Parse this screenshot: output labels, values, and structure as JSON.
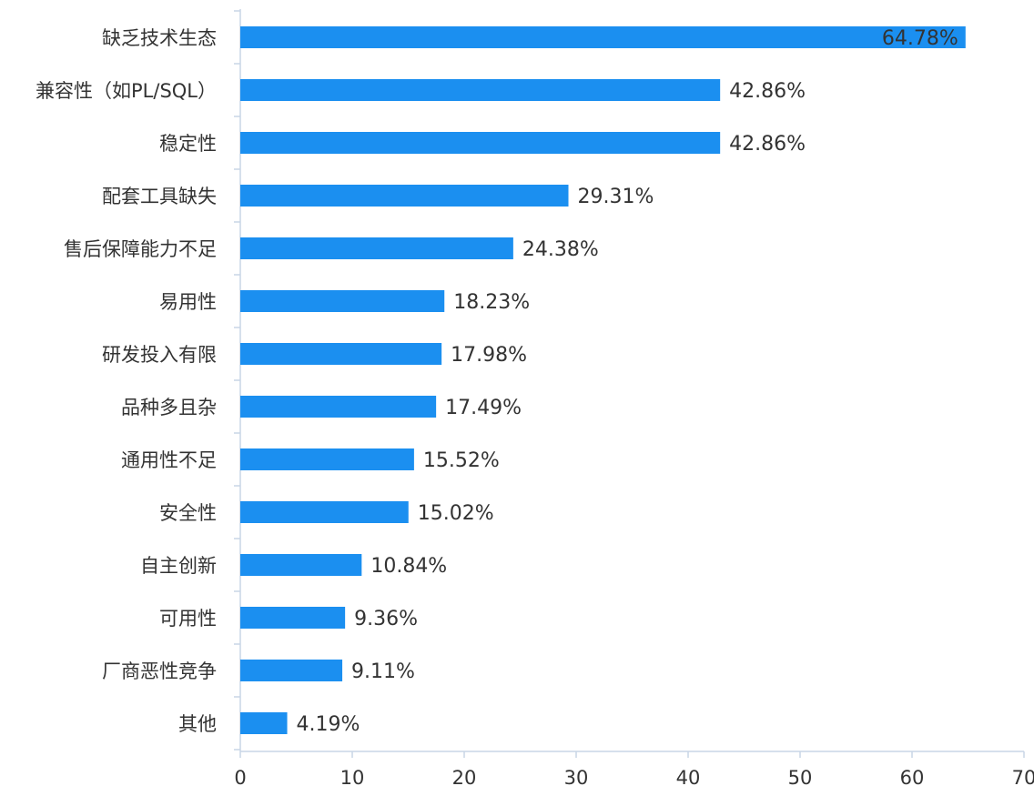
{
  "chart_data": {
    "type": "bar",
    "orientation": "horizontal",
    "categories": [
      "缺乏技术生态",
      "兼容性（如PL/SQL）",
      "稳定性",
      "配套工具缺失",
      "售后保障能力不足",
      "易用性",
      "研发投入有限",
      "品种多且杂",
      "通用性不足",
      "安全性",
      "自主创新",
      "可用性",
      "厂商恶性竞争",
      "其他"
    ],
    "values": [
      64.78,
      42.86,
      42.86,
      29.31,
      24.38,
      18.23,
      17.98,
      17.49,
      15.52,
      15.02,
      10.84,
      9.36,
      9.11,
      4.19
    ],
    "value_labels": [
      "64.78%",
      "42.86%",
      "42.86%",
      "29.31%",
      "24.38%",
      "18.23%",
      "17.98%",
      "17.49%",
      "15.52%",
      "15.02%",
      "10.84%",
      "9.36%",
      "9.11%",
      "4.19%"
    ],
    "xticks": [
      0,
      10,
      20,
      30,
      40,
      50,
      60,
      70
    ],
    "xlim": [
      0,
      70
    ],
    "title": "",
    "xlabel": "",
    "ylabel": "",
    "grid": false,
    "legend": "none",
    "bar_color": "#1B8FF0",
    "axis_color": "#C8D6E6",
    "text_color": "#333333"
  }
}
